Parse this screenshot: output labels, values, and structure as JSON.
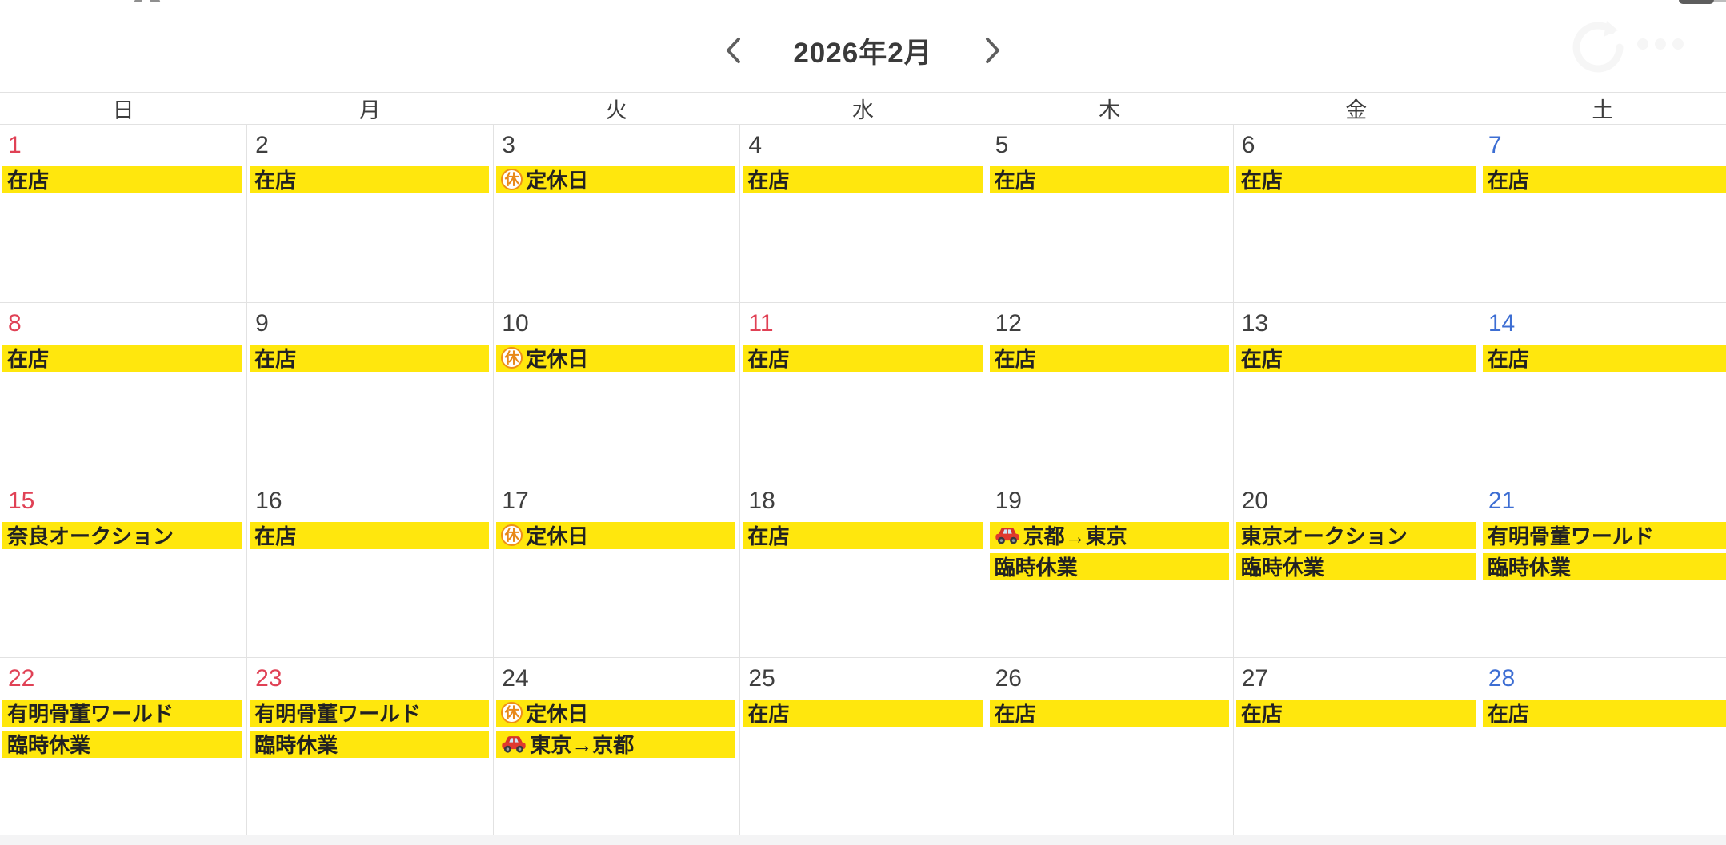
{
  "header": {
    "title": "2026年2月"
  },
  "weekdays": [
    "日",
    "月",
    "火",
    "水",
    "木",
    "金",
    "土"
  ],
  "icons": {
    "rest_glyph": "休",
    "rest_icon_meaning": "定休日マーク",
    "car_icon_meaning": "移動"
  },
  "colors": {
    "event_highlight": "#ffe70d",
    "sunday_holiday_red": "#e04155",
    "saturday_blue": "#3d6ed3",
    "chevron_gray": "#5f5f5f"
  },
  "weeks": [
    {
      "days": [
        {
          "date": "1",
          "role": "sun",
          "events": [
            {
              "label": "在店"
            }
          ]
        },
        {
          "date": "2",
          "role": "",
          "events": [
            {
              "label": "在店"
            }
          ]
        },
        {
          "date": "3",
          "role": "",
          "events": [
            {
              "icon": "rest-icon",
              "label": "定休日"
            }
          ]
        },
        {
          "date": "4",
          "role": "",
          "events": [
            {
              "label": "在店"
            }
          ]
        },
        {
          "date": "5",
          "role": "",
          "events": [
            {
              "label": "在店"
            }
          ]
        },
        {
          "date": "6",
          "role": "",
          "events": [
            {
              "label": "在店"
            }
          ]
        },
        {
          "date": "7",
          "role": "sat",
          "events": [
            {
              "label": "在店"
            }
          ]
        }
      ]
    },
    {
      "days": [
        {
          "date": "8",
          "role": "sun",
          "events": [
            {
              "label": "在店"
            }
          ]
        },
        {
          "date": "9",
          "role": "",
          "events": [
            {
              "label": "在店"
            }
          ]
        },
        {
          "date": "10",
          "role": "",
          "events": [
            {
              "icon": "rest-icon",
              "label": "定休日"
            }
          ]
        },
        {
          "date": "11",
          "role": "holiday",
          "events": [
            {
              "label": "在店"
            }
          ]
        },
        {
          "date": "12",
          "role": "",
          "events": [
            {
              "label": "在店"
            }
          ]
        },
        {
          "date": "13",
          "role": "",
          "events": [
            {
              "label": "在店"
            }
          ]
        },
        {
          "date": "14",
          "role": "sat",
          "events": [
            {
              "label": "在店"
            }
          ]
        }
      ]
    },
    {
      "days": [
        {
          "date": "15",
          "role": "sun",
          "events": [
            {
              "label": "奈良オークション"
            }
          ]
        },
        {
          "date": "16",
          "role": "",
          "events": [
            {
              "label": "在店"
            }
          ]
        },
        {
          "date": "17",
          "role": "",
          "events": [
            {
              "icon": "rest-icon",
              "label": "定休日"
            }
          ]
        },
        {
          "date": "18",
          "role": "",
          "events": [
            {
              "label": "在店"
            }
          ]
        },
        {
          "date": "19",
          "role": "",
          "events": [
            {
              "icon": "car-icon",
              "label": "京都→東京"
            },
            {
              "label": "臨時休業"
            }
          ]
        },
        {
          "date": "20",
          "role": "",
          "events": [
            {
              "label": "東京オークション"
            },
            {
              "label": "臨時休業"
            }
          ]
        },
        {
          "date": "21",
          "role": "sat",
          "events": [
            {
              "label": "有明骨董ワールド"
            },
            {
              "label": "臨時休業"
            }
          ]
        }
      ]
    },
    {
      "days": [
        {
          "date": "22",
          "role": "sun",
          "events": [
            {
              "label": "有明骨董ワールド"
            },
            {
              "label": "臨時休業"
            }
          ]
        },
        {
          "date": "23",
          "role": "holiday",
          "events": [
            {
              "label": "有明骨董ワールド"
            },
            {
              "label": "臨時休業"
            }
          ]
        },
        {
          "date": "24",
          "role": "",
          "events": [
            {
              "icon": "rest-icon",
              "label": "定休日"
            },
            {
              "icon": "car-icon",
              "label": "東京→京都"
            }
          ]
        },
        {
          "date": "25",
          "role": "",
          "events": [
            {
              "label": "在店"
            }
          ]
        },
        {
          "date": "26",
          "role": "",
          "events": [
            {
              "label": "在店"
            }
          ]
        },
        {
          "date": "27",
          "role": "",
          "events": [
            {
              "label": "在店"
            }
          ]
        },
        {
          "date": "28",
          "role": "sat",
          "events": [
            {
              "label": "在店"
            }
          ]
        }
      ]
    }
  ]
}
